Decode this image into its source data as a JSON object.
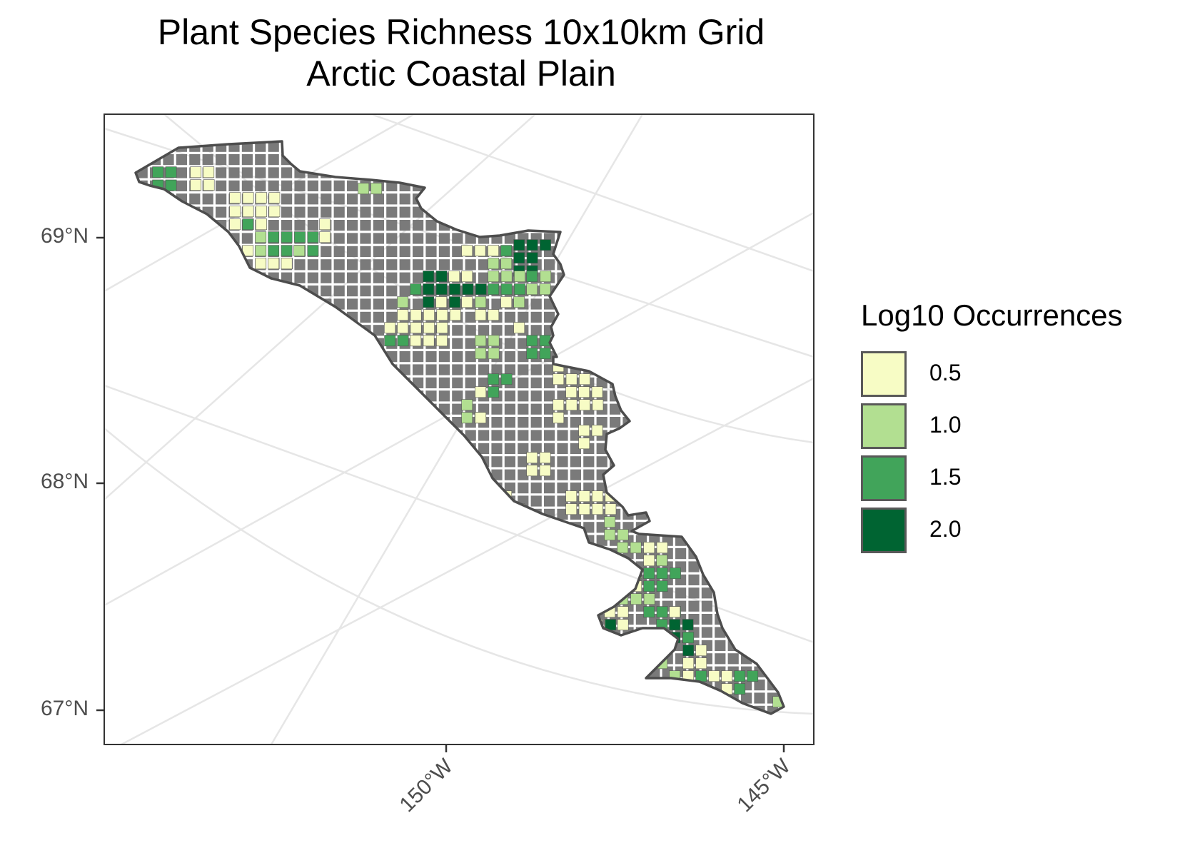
{
  "title": {
    "line1": "Plant Species Richness 10x10km Grid",
    "line2": "Arctic Coastal Plain"
  },
  "axes": {
    "y_ticks": [
      "69°N",
      "68°N",
      "67°N"
    ],
    "x_ticks": [
      "150°W",
      "145°W"
    ]
  },
  "legend": {
    "title": "Log10 Occurrences",
    "items": [
      {
        "label": "0.5",
        "color": "#f7fcc5"
      },
      {
        "label": "1.0",
        "color": "#b2df91"
      },
      {
        "label": "1.5",
        "color": "#41a45a"
      },
      {
        "label": "2.0",
        "color": "#006432"
      }
    ]
  },
  "map": {
    "region": "Arctic Coastal Plain",
    "cell_size": "10x10km",
    "no_data_color": "#7a7a7a",
    "outline_color": "#4d4d4d",
    "background_color": "#ffffff",
    "graticule_color": "#e6e6e6"
  }
}
